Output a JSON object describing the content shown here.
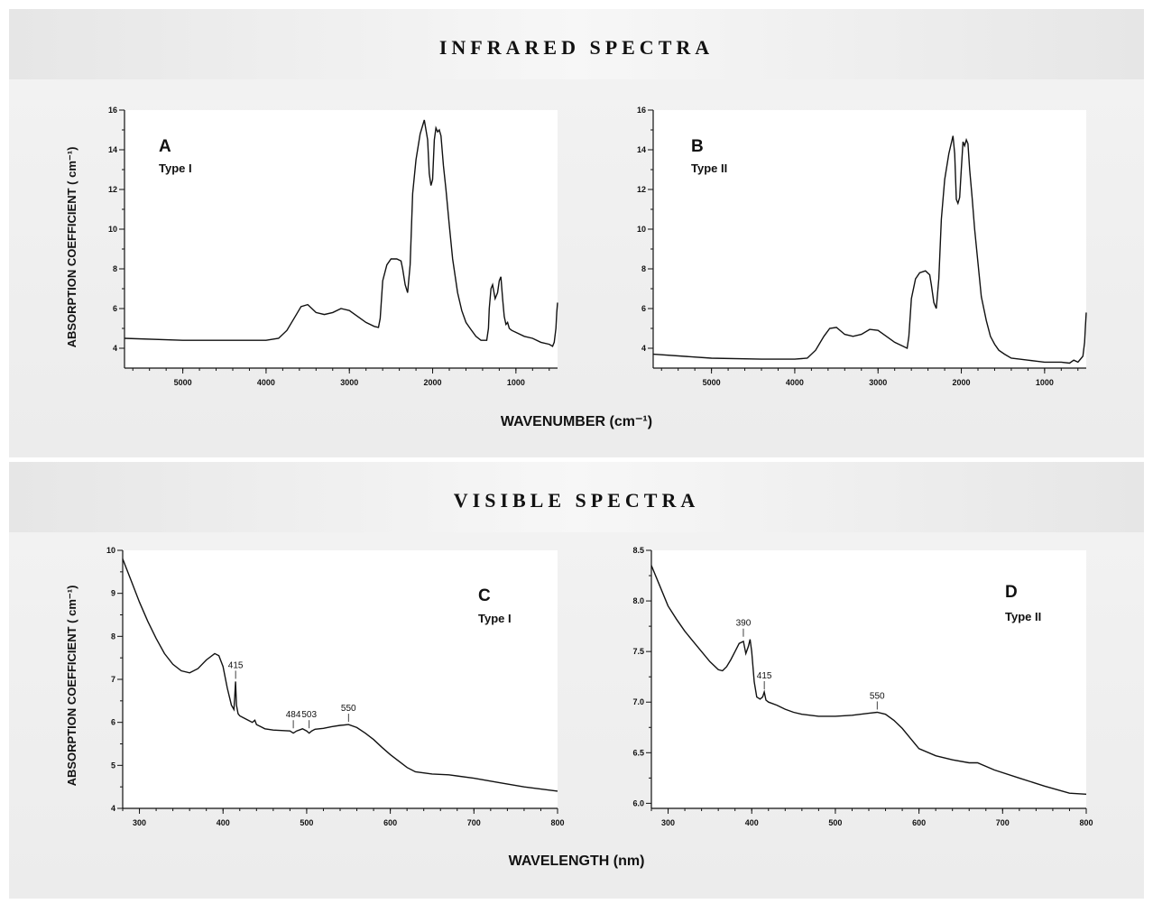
{
  "infrared": {
    "section_title": "INFRARED SPECTRA",
    "y_title": "ABSORPTION COEFFICIENT ( cm⁻¹)",
    "x_title": "WAVENUMBER (cm⁻¹)"
  },
  "visible": {
    "section_title": "VISIBLE SPECTRA",
    "y_title": "ABSORPTION COEFFICIENT ( cm⁻¹)",
    "x_title": "WAVELENGTH (nm)"
  },
  "chart_data": [
    {
      "id": "A",
      "type": "line",
      "letter": "A",
      "subtitle": "Type I",
      "xlabel": "WAVENUMBER (cm⁻¹)",
      "ylabel": "ABSORPTION COEFFICIENT ( cm⁻¹)",
      "xlim": [
        5700,
        500
      ],
      "ylim": [
        3,
        16
      ],
      "xticks": [
        5000,
        4000,
        3000,
        2000,
        1000
      ],
      "xtick_labels": [
        "5000",
        "4000",
        "3000",
        "2000",
        "1000"
      ],
      "yticks": [
        4,
        6,
        8,
        10,
        12,
        14,
        16
      ],
      "ytick_labels": [
        "4",
        "6",
        "8",
        "10",
        "12",
        "14",
        "16"
      ],
      "annotations": [],
      "x": [
        5700,
        5000,
        4400,
        4000,
        3850,
        3750,
        3650,
        3580,
        3500,
        3400,
        3300,
        3200,
        3100,
        3000,
        2900,
        2800,
        2700,
        2650,
        2630,
        2600,
        2550,
        2500,
        2430,
        2380,
        2360,
        2330,
        2300,
        2270,
        2240,
        2200,
        2150,
        2100,
        2060,
        2040,
        2020,
        2000,
        1980,
        1960,
        1940,
        1920,
        1900,
        1870,
        1840,
        1800,
        1760,
        1700,
        1650,
        1600,
        1550,
        1480,
        1420,
        1380,
        1350,
        1330,
        1320,
        1300,
        1280,
        1250,
        1220,
        1200,
        1180,
        1160,
        1140,
        1120,
        1100,
        1080,
        1050,
        1000,
        900,
        800,
        700,
        600,
        560,
        540,
        520,
        510,
        500
      ],
      "y": [
        4.5,
        4.4,
        4.4,
        4.4,
        4.5,
        4.9,
        5.6,
        6.1,
        6.2,
        5.8,
        5.7,
        5.8,
        6.0,
        5.9,
        5.6,
        5.3,
        5.1,
        5.05,
        5.5,
        7.4,
        8.2,
        8.5,
        8.5,
        8.4,
        8.0,
        7.2,
        6.8,
        8.2,
        11.8,
        13.5,
        14.8,
        15.5,
        14.5,
        12.8,
        12.2,
        12.5,
        14.5,
        15.1,
        14.9,
        15.0,
        14.7,
        13.2,
        12.0,
        10.2,
        8.5,
        6.8,
        5.9,
        5.3,
        5.0,
        4.6,
        4.4,
        4.4,
        4.4,
        5.0,
        6.0,
        7.0,
        7.2,
        6.5,
        6.8,
        7.4,
        7.6,
        6.5,
        5.6,
        5.2,
        5.3,
        5.0,
        4.9,
        4.8,
        4.6,
        4.5,
        4.3,
        4.2,
        4.1,
        4.3,
        5.0,
        5.8,
        6.3
      ]
    },
    {
      "id": "B",
      "type": "line",
      "letter": "B",
      "subtitle": "Type II",
      "xlabel": "WAVENUMBER (cm⁻¹)",
      "ylabel": "ABSORPTION COEFFICIENT ( cm⁻¹)",
      "xlim": [
        5700,
        500
      ],
      "ylim": [
        3,
        16
      ],
      "xticks": [
        5000,
        4000,
        3000,
        2000,
        1000
      ],
      "xtick_labels": [
        "5000",
        "4000",
        "3000",
        "2000",
        "1000"
      ],
      "yticks": [
        4,
        6,
        8,
        10,
        12,
        14,
        16
      ],
      "ytick_labels": [
        "4",
        "6",
        "8",
        "10",
        "12",
        "14",
        "16"
      ],
      "annotations": [],
      "x": [
        5700,
        5000,
        4400,
        4000,
        3850,
        3750,
        3650,
        3580,
        3500,
        3400,
        3300,
        3200,
        3100,
        3000,
        2900,
        2800,
        2700,
        2650,
        2630,
        2600,
        2550,
        2500,
        2430,
        2380,
        2360,
        2330,
        2300,
        2270,
        2240,
        2200,
        2150,
        2100,
        2080,
        2060,
        2040,
        2020,
        2000,
        1980,
        1960,
        1940,
        1920,
        1900,
        1870,
        1840,
        1800,
        1760,
        1700,
        1650,
        1600,
        1550,
        1480,
        1400,
        1300,
        1200,
        1100,
        1000,
        900,
        800,
        700,
        650,
        600,
        560,
        540,
        520,
        510,
        500
      ],
      "y": [
        3.7,
        3.5,
        3.45,
        3.45,
        3.5,
        3.9,
        4.6,
        5.0,
        5.05,
        4.7,
        4.6,
        4.7,
        4.95,
        4.9,
        4.6,
        4.3,
        4.1,
        4.0,
        4.6,
        6.5,
        7.5,
        7.8,
        7.9,
        7.7,
        7.2,
        6.3,
        6.0,
        7.5,
        10.5,
        12.5,
        13.8,
        14.7,
        13.8,
        11.5,
        11.3,
        11.6,
        13.0,
        14.4,
        14.2,
        14.5,
        14.3,
        13.0,
        11.6,
        10.0,
        8.3,
        6.6,
        5.4,
        4.6,
        4.2,
        3.9,
        3.7,
        3.5,
        3.45,
        3.4,
        3.35,
        3.3,
        3.3,
        3.3,
        3.25,
        3.4,
        3.3,
        3.5,
        3.6,
        4.3,
        5.1,
        5.8
      ]
    },
    {
      "id": "C",
      "type": "line",
      "letter": "C",
      "subtitle": "Type I",
      "xlabel": "WAVELENGTH (nm)",
      "ylabel": "ABSORPTION COEFFICIENT ( cm⁻¹)",
      "xlim": [
        280,
        800
      ],
      "ylim": [
        4,
        10
      ],
      "xticks": [
        300,
        400,
        500,
        600,
        700,
        800
      ],
      "xtick_labels": [
        "300",
        "400",
        "500",
        "600",
        "700",
        "800"
      ],
      "yticks": [
        4,
        5,
        6,
        7,
        8,
        9,
        10
      ],
      "ytick_labels": [
        "4",
        "5",
        "6",
        "7",
        "8",
        "9",
        "10"
      ],
      "annotations": [
        {
          "label": "415",
          "x": 415,
          "y": 6.95
        },
        {
          "label": "484",
          "x": 484,
          "y": 5.8
        },
        {
          "label": "503",
          "x": 503,
          "y": 5.8
        },
        {
          "label": "550",
          "x": 550,
          "y": 5.95
        }
      ],
      "x": [
        280,
        290,
        300,
        310,
        320,
        330,
        340,
        350,
        360,
        370,
        380,
        390,
        395,
        400,
        405,
        410,
        413,
        414,
        415,
        416,
        418,
        420,
        425,
        430,
        435,
        438,
        440,
        445,
        450,
        460,
        470,
        480,
        484,
        488,
        495,
        500,
        503,
        506,
        510,
        520,
        530,
        540,
        550,
        560,
        570,
        580,
        590,
        600,
        610,
        620,
        630,
        650,
        670,
        700,
        730,
        760,
        800
      ],
      "y": [
        9.8,
        9.3,
        8.8,
        8.35,
        7.95,
        7.6,
        7.35,
        7.2,
        7.15,
        7.25,
        7.45,
        7.6,
        7.55,
        7.3,
        6.8,
        6.4,
        6.3,
        6.6,
        6.95,
        6.4,
        6.2,
        6.15,
        6.1,
        6.05,
        6.0,
        6.05,
        5.95,
        5.9,
        5.85,
        5.82,
        5.81,
        5.8,
        5.75,
        5.8,
        5.85,
        5.8,
        5.75,
        5.8,
        5.84,
        5.86,
        5.9,
        5.93,
        5.95,
        5.88,
        5.75,
        5.6,
        5.42,
        5.25,
        5.1,
        4.95,
        4.85,
        4.8,
        4.78,
        4.7,
        4.6,
        4.5,
        4.4
      ]
    },
    {
      "id": "D",
      "type": "line",
      "letter": "D",
      "subtitle": "Type II",
      "xlabel": "WAVELENGTH (nm)",
      "ylabel": "ABSORPTION COEFFICIENT ( cm⁻¹)",
      "xlim": [
        280,
        800
      ],
      "ylim": [
        5.95,
        8.5
      ],
      "xticks": [
        300,
        400,
        500,
        600,
        700,
        800
      ],
      "xtick_labels": [
        "300",
        "400",
        "500",
        "600",
        "700",
        "800"
      ],
      "yticks": [
        6.0,
        6.5,
        7.0,
        7.5,
        8.0,
        8.5
      ],
      "ytick_labels": [
        "6.0",
        "6.5",
        "7.0",
        "7.5",
        "8.0",
        "8.5"
      ],
      "annotations": [
        {
          "label": "390",
          "x": 390,
          "y": 7.62
        },
        {
          "label": "415",
          "x": 415,
          "y": 7.1
        },
        {
          "label": "550",
          "x": 550,
          "y": 6.9
        }
      ],
      "x": [
        280,
        290,
        300,
        310,
        320,
        330,
        340,
        350,
        360,
        365,
        370,
        375,
        380,
        385,
        390,
        393,
        396,
        398,
        400,
        403,
        406,
        410,
        413,
        415,
        417,
        420,
        430,
        440,
        450,
        460,
        470,
        480,
        500,
        520,
        540,
        550,
        560,
        570,
        580,
        590,
        600,
        620,
        640,
        660,
        670,
        690,
        720,
        750,
        780,
        800
      ],
      "y": [
        8.35,
        8.15,
        7.95,
        7.82,
        7.7,
        7.6,
        7.5,
        7.4,
        7.32,
        7.31,
        7.35,
        7.42,
        7.5,
        7.58,
        7.6,
        7.48,
        7.55,
        7.62,
        7.5,
        7.2,
        7.05,
        7.03,
        7.05,
        7.1,
        7.02,
        7.0,
        6.97,
        6.93,
        6.9,
        6.88,
        6.87,
        6.86,
        6.86,
        6.87,
        6.89,
        6.9,
        6.88,
        6.82,
        6.74,
        6.64,
        6.54,
        6.47,
        6.43,
        6.4,
        6.4,
        6.33,
        6.25,
        6.17,
        6.1,
        6.09
      ]
    }
  ]
}
